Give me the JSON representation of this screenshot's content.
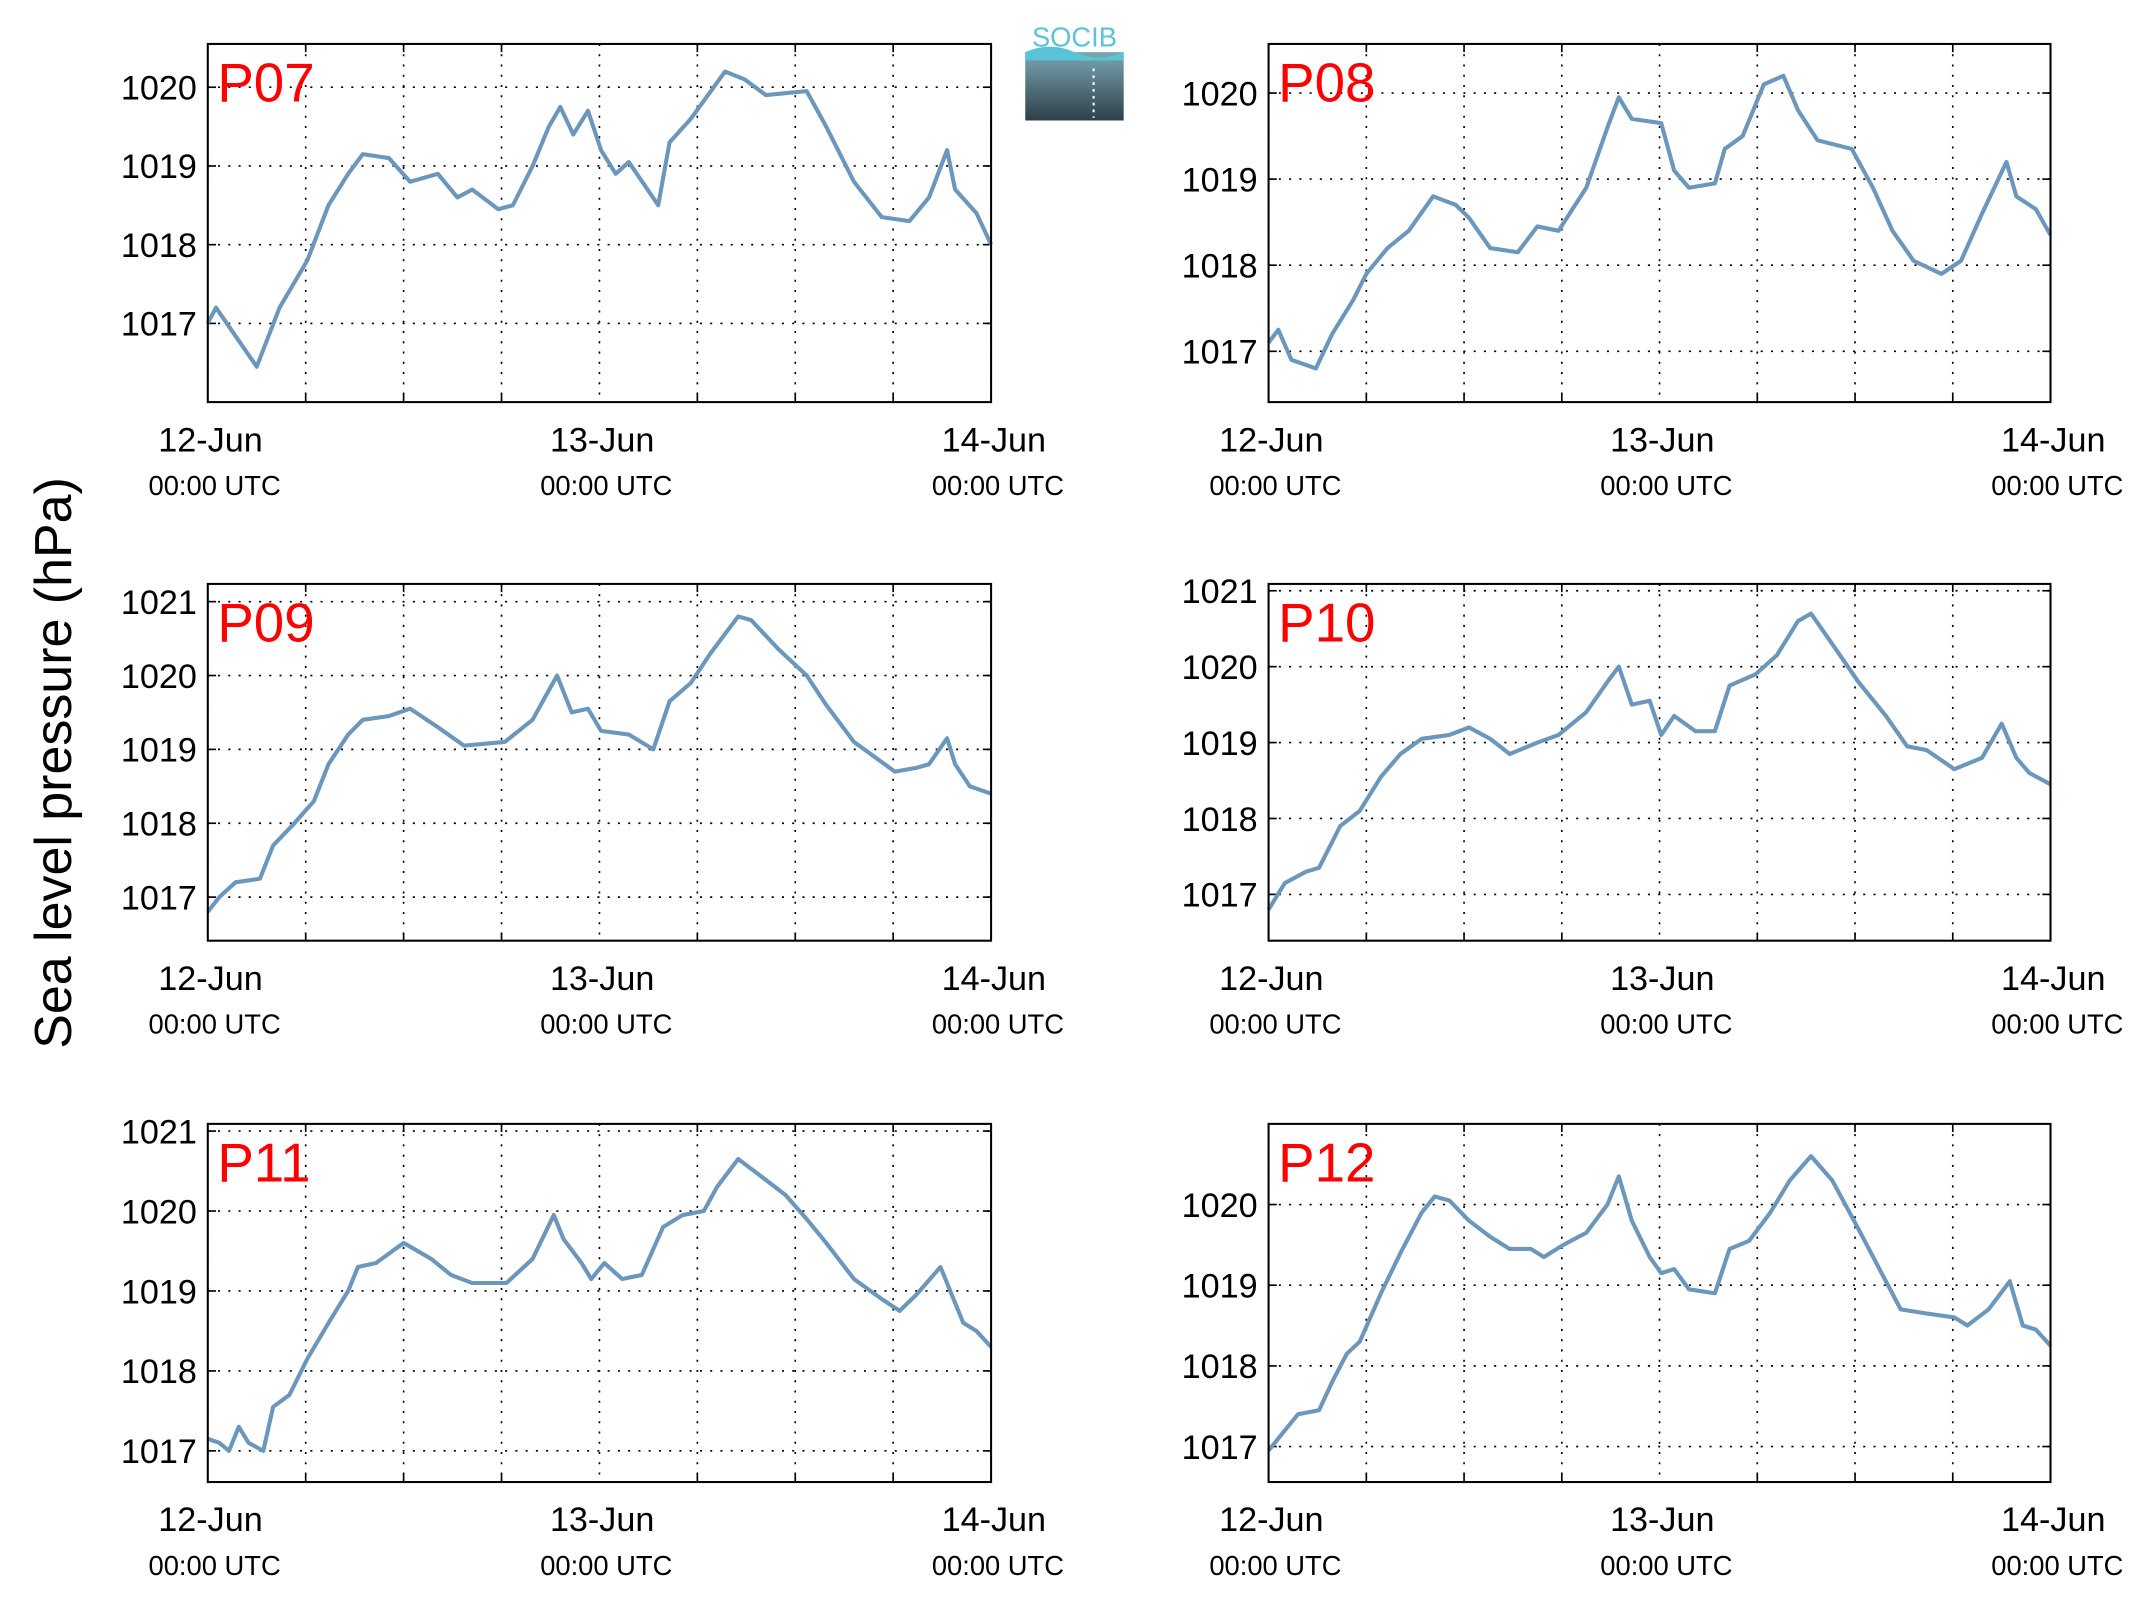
{
  "ylabel": "Sea level pressure (hPa)",
  "logo": "SOCIB",
  "chart_data": [
    {
      "type": "line",
      "title": "P07",
      "color": "#6b97bc",
      "grid": true,
      "xlim": [
        0,
        48
      ],
      "xticks": [
        {
          "value": 0,
          "label": "12-Jun",
          "sublabel": "00:00 UTC"
        },
        {
          "value": 24,
          "label": "13-Jun",
          "sublabel": "00:00 UTC"
        },
        {
          "value": 48,
          "label": "14-Jun",
          "sublabel": "00:00 UTC"
        }
      ],
      "xminor": [
        6,
        12,
        18,
        30,
        36,
        42
      ],
      "ylim": [
        1016,
        1020.55
      ],
      "yticks": [
        1017,
        1018,
        1019,
        1020
      ],
      "x": [
        0,
        0.5,
        1.5,
        3.0,
        4.4,
        6.1,
        7.4,
        8.6,
        9.5,
        11.1,
        12.4,
        14.1,
        15.3,
        16.2,
        17.8,
        18.7,
        19.9,
        20.9,
        21.6,
        22.4,
        23.3,
        24.1,
        25.0,
        25.8,
        27.6,
        28.3,
        29.6,
        31.7,
        32.9,
        34.2,
        36.7,
        37.9,
        39.6,
        41.3,
        43.0,
        44.2,
        45.3,
        45.8,
        47.1,
        48
      ],
      "values": [
        1017.0,
        1017.2,
        1016.9,
        1016.45,
        1017.2,
        1017.8,
        1018.5,
        1018.9,
        1019.15,
        1019.1,
        1018.8,
        1018.9,
        1018.6,
        1018.7,
        1018.45,
        1018.5,
        1019.0,
        1019.5,
        1019.75,
        1019.4,
        1019.7,
        1019.2,
        1018.9,
        1019.05,
        1018.5,
        1019.3,
        1019.6,
        1020.2,
        1020.1,
        1019.9,
        1019.95,
        1019.5,
        1018.8,
        1018.35,
        1018.3,
        1018.6,
        1019.2,
        1018.7,
        1018.4,
        1018.0
      ]
    },
    {
      "type": "line",
      "title": "P08",
      "color": "#6b97bc",
      "grid": true,
      "xlim": [
        0,
        48
      ],
      "xticks": [
        {
          "value": 0,
          "label": "12-Jun",
          "sublabel": "00:00 UTC"
        },
        {
          "value": 24,
          "label": "13-Jun",
          "sublabel": "00:00 UTC"
        },
        {
          "value": 48,
          "label": "14-Jun",
          "sublabel": "00:00 UTC"
        }
      ],
      "xminor": [
        6,
        12,
        18,
        30,
        36,
        42
      ],
      "ylim": [
        1016.41,
        1020.57
      ],
      "yticks": [
        1017,
        1018,
        1019,
        1020
      ],
      "x": [
        0,
        0.6,
        1.4,
        2.9,
        3.9,
        5.2,
        6.0,
        7.3,
        8.6,
        10.1,
        11.5,
        12.3,
        13.6,
        15.3,
        16.5,
        17.8,
        19.5,
        20.8,
        21.5,
        22.3,
        24.1,
        24.9,
        25.8,
        27.4,
        28.0,
        29.1,
        30.4,
        31.6,
        32.5,
        33.7,
        35.8,
        37.1,
        38.3,
        39.6,
        41.3,
        42.5,
        43.8,
        45.3,
        45.9,
        47.1,
        48
      ],
      "values": [
        1017.1,
        1017.25,
        1016.9,
        1016.8,
        1017.2,
        1017.6,
        1017.9,
        1018.2,
        1018.4,
        1018.8,
        1018.7,
        1018.55,
        1018.2,
        1018.15,
        1018.45,
        1018.4,
        1018.9,
        1019.6,
        1019.95,
        1019.7,
        1019.65,
        1019.1,
        1018.9,
        1018.95,
        1019.35,
        1019.5,
        1020.1,
        1020.2,
        1019.8,
        1019.45,
        1019.35,
        1018.9,
        1018.4,
        1018.05,
        1017.9,
        1018.05,
        1018.6,
        1019.2,
        1018.8,
        1018.65,
        1018.35
      ]
    },
    {
      "type": "line",
      "title": "P09",
      "color": "#6b97bc",
      "grid": true,
      "xlim": [
        0,
        48
      ],
      "xticks": [
        {
          "value": 0,
          "label": "12-Jun",
          "sublabel": "00:00 UTC"
        },
        {
          "value": 24,
          "label": "13-Jun",
          "sublabel": "00:00 UTC"
        },
        {
          "value": 48,
          "label": "14-Jun",
          "sublabel": "00:00 UTC"
        }
      ],
      "xminor": [
        6,
        12,
        18,
        30,
        36,
        42
      ],
      "ylim": [
        1016.41,
        1021.24
      ],
      "yticks": [
        1017,
        1018,
        1019,
        1020,
        1021
      ],
      "x": [
        0,
        0.7,
        1.7,
        3.2,
        4.0,
        5.3,
        6.5,
        7.4,
        8.6,
        9.5,
        11.1,
        12.4,
        14.1,
        15.7,
        18.2,
        19.9,
        21.4,
        22.3,
        23.3,
        24.1,
        25.8,
        27.3,
        28.3,
        29.6,
        30.8,
        32.5,
        33.3,
        35.0,
        36.7,
        37.9,
        39.6,
        42.1,
        43.4,
        44.2,
        45.3,
        45.8,
        46.7,
        48
      ],
      "values": [
        1016.8,
        1017.0,
        1017.2,
        1017.25,
        1017.7,
        1018.0,
        1018.3,
        1018.8,
        1019.2,
        1019.4,
        1019.45,
        1019.55,
        1019.3,
        1019.05,
        1019.1,
        1019.4,
        1020.0,
        1019.5,
        1019.55,
        1019.25,
        1019.2,
        1019.0,
        1019.65,
        1019.9,
        1020.3,
        1020.8,
        1020.75,
        1020.35,
        1020.0,
        1019.6,
        1019.1,
        1018.7,
        1018.75,
        1018.8,
        1019.15,
        1018.8,
        1018.5,
        1018.4
      ]
    },
    {
      "type": "line",
      "title": "P10",
      "color": "#6b97bc",
      "grid": true,
      "xlim": [
        0,
        48
      ],
      "xticks": [
        {
          "value": 0,
          "label": "12-Jun",
          "sublabel": "00:00 UTC"
        },
        {
          "value": 24,
          "label": "13-Jun",
          "sublabel": "00:00 UTC"
        },
        {
          "value": 48,
          "label": "14-Jun",
          "sublabel": "00:00 UTC"
        }
      ],
      "xminor": [
        6,
        12,
        18,
        30,
        36,
        42
      ],
      "ylim": [
        1016.39,
        1021.09
      ],
      "yticks": [
        1017,
        1018,
        1019,
        1020,
        1021
      ],
      "x": [
        0,
        1.0,
        2.3,
        3.1,
        4.4,
        5.6,
        6.9,
        8.1,
        9.4,
        11.1,
        12.3,
        13.6,
        14.8,
        16.5,
        17.8,
        19.5,
        20.8,
        21.5,
        22.3,
        23.4,
        24.1,
        24.9,
        26.2,
        27.4,
        28.3,
        29.9,
        31.2,
        32.5,
        33.3,
        34.6,
        36.2,
        37.9,
        39.2,
        40.4,
        42.1,
        43.8,
        45.0,
        45.9,
        46.7,
        48
      ],
      "values": [
        1016.8,
        1017.15,
        1017.3,
        1017.35,
        1017.9,
        1018.1,
        1018.55,
        1018.85,
        1019.05,
        1019.1,
        1019.2,
        1019.05,
        1018.85,
        1019.0,
        1019.1,
        1019.4,
        1019.8,
        1020.0,
        1019.5,
        1019.55,
        1019.1,
        1019.35,
        1019.15,
        1019.15,
        1019.75,
        1019.9,
        1020.15,
        1020.6,
        1020.7,
        1020.3,
        1019.8,
        1019.35,
        1018.95,
        1018.9,
        1018.65,
        1018.8,
        1019.25,
        1018.8,
        1018.6,
        1018.45
      ]
    },
    {
      "type": "line",
      "title": "P11",
      "color": "#6b97bc",
      "grid": true,
      "xlim": [
        0,
        48
      ],
      "xticks": [
        {
          "value": 0,
          "label": "12-Jun",
          "sublabel": "00:00 UTC"
        },
        {
          "value": 24,
          "label": "13-Jun",
          "sublabel": "00:00 UTC"
        },
        {
          "value": 48,
          "label": "14-Jun",
          "sublabel": "00:00 UTC"
        }
      ],
      "xminor": [
        6,
        12,
        18,
        30,
        36,
        42
      ],
      "ylim": [
        1016.61,
        1021.09
      ],
      "yticks": [
        1017,
        1018,
        1019,
        1020,
        1021
      ],
      "x": [
        0,
        0.7,
        1.3,
        1.9,
        2.5,
        3.4,
        4.0,
        5.0,
        6.1,
        7.4,
        8.6,
        9.2,
        10.3,
        12.0,
        13.7,
        14.9,
        16.2,
        18.3,
        19.9,
        21.2,
        21.8,
        22.9,
        23.5,
        24.3,
        25.4,
        26.6,
        27.9,
        29.1,
        30.4,
        31.2,
        32.5,
        33.8,
        35.4,
        36.7,
        37.9,
        39.6,
        41.3,
        42.4,
        43.4,
        44.9,
        45.7,
        46.3,
        47.1,
        48
      ],
      "values": [
        1017.15,
        1017.1,
        1017.0,
        1017.3,
        1017.1,
        1017.0,
        1017.55,
        1017.7,
        1018.15,
        1018.6,
        1019.0,
        1019.3,
        1019.35,
        1019.6,
        1019.4,
        1019.2,
        1019.1,
        1019.1,
        1019.4,
        1019.95,
        1019.65,
        1019.35,
        1019.15,
        1019.35,
        1019.15,
        1019.2,
        1019.8,
        1019.95,
        1020.0,
        1020.3,
        1020.65,
        1020.45,
        1020.2,
        1019.9,
        1019.6,
        1019.15,
        1018.9,
        1018.75,
        1018.95,
        1019.3,
        1018.9,
        1018.6,
        1018.5,
        1018.3
      ]
    },
    {
      "type": "line",
      "title": "P12",
      "color": "#6b97bc",
      "grid": true,
      "xlim": [
        0,
        48
      ],
      "xticks": [
        {
          "value": 0,
          "label": "12-Jun",
          "sublabel": "00:00 UTC"
        },
        {
          "value": 24,
          "label": "13-Jun",
          "sublabel": "00:00 UTC"
        },
        {
          "value": 48,
          "label": "14-Jun",
          "sublabel": "00:00 UTC"
        }
      ],
      "xminor": [
        6,
        12,
        18,
        30,
        36,
        42
      ],
      "ylim": [
        1016.56,
        1021.0
      ],
      "yticks": [
        1017,
        1018,
        1019,
        1020
      ],
      "x": [
        0,
        1.0,
        1.8,
        3.1,
        3.9,
        4.8,
        5.6,
        6.9,
        8.1,
        9.4,
        10.2,
        11.1,
        12.3,
        13.6,
        14.8,
        16.1,
        16.9,
        18.1,
        19.5,
        20.8,
        21.5,
        22.3,
        23.4,
        24.1,
        24.9,
        25.8,
        27.4,
        28.3,
        29.5,
        30.8,
        32.0,
        33.3,
        34.6,
        36.2,
        37.5,
        38.8,
        40.4,
        42.1,
        42.9,
        44.2,
        45.5,
        46.3,
        47.1,
        48
      ],
      "values": [
        1016.95,
        1017.2,
        1017.4,
        1017.45,
        1017.8,
        1018.15,
        1018.3,
        1018.9,
        1019.4,
        1019.9,
        1020.1,
        1020.05,
        1019.8,
        1019.6,
        1019.45,
        1019.45,
        1019.35,
        1019.5,
        1019.65,
        1020.0,
        1020.35,
        1019.8,
        1019.35,
        1019.15,
        1019.2,
        1018.95,
        1018.9,
        1019.45,
        1019.55,
        1019.9,
        1020.3,
        1020.6,
        1020.3,
        1019.7,
        1019.2,
        1018.7,
        1018.65,
        1018.6,
        1018.5,
        1018.7,
        1019.05,
        1018.5,
        1018.45,
        1018.25
      ]
    }
  ]
}
